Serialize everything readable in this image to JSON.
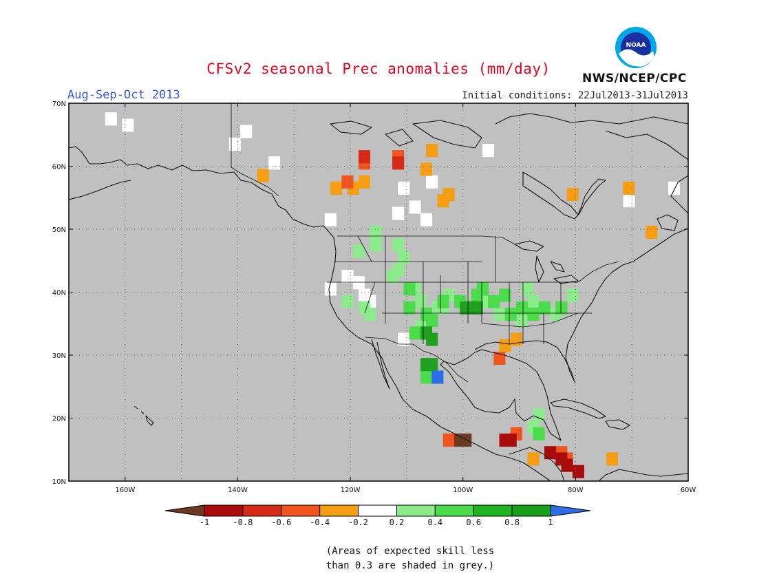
{
  "header": {
    "title": "CFSv2 seasonal Prec anomalies (mm/day)",
    "period": "Aug-Sep-Oct 2013",
    "initial_conditions": "Initial conditions: 22Jul2013-31Jul2013",
    "agency": "NWS/NCEP/CPC",
    "logo_text": "NOAA"
  },
  "map": {
    "extent": {
      "lon_min": -170,
      "lon_max": -60,
      "lat_min": 10,
      "lat_max": 70
    },
    "lat_ticks": [
      "10N",
      "20N",
      "30N",
      "40N",
      "50N",
      "60N",
      "70N"
    ],
    "lon_ticks": [
      "160W",
      "140W",
      "120W",
      "100W",
      "80W",
      "60W"
    ],
    "background_color": "#c0c0c0",
    "gridlines": "dotted",
    "anomaly_cells_lonlat": {
      "white": [
        [
          -163,
          68
        ],
        [
          -160,
          67
        ],
        [
          -141,
          64
        ],
        [
          -139,
          66
        ],
        [
          -134,
          61
        ],
        [
          -124,
          52
        ],
        [
          -124,
          41
        ],
        [
          -121,
          43
        ],
        [
          -119,
          42
        ],
        [
          -118,
          40
        ],
        [
          -117,
          39
        ],
        [
          -111,
          33
        ],
        [
          -107,
          52
        ],
        [
          -109,
          54
        ],
        [
          -111,
          57
        ],
        [
          -106,
          58
        ],
        [
          -96,
          63
        ],
        [
          -71,
          55
        ],
        [
          -63,
          57
        ],
        [
          -112,
          53
        ]
      ],
      "lightgreen": [
        [
          -121,
          39
        ],
        [
          -118,
          38
        ],
        [
          -113,
          43
        ],
        [
          -112,
          44
        ],
        [
          -109,
          41
        ],
        [
          -108,
          39
        ],
        [
          -105,
          38
        ],
        [
          -103,
          40
        ],
        [
          -94,
          37
        ],
        [
          -90,
          36
        ],
        [
          -88,
          39
        ],
        [
          -84,
          37
        ],
        [
          -81,
          40
        ],
        [
          -111,
          46
        ],
        [
          -112,
          48
        ],
        [
          -119,
          47
        ],
        [
          -117,
          37
        ],
        [
          -116,
          50
        ],
        [
          -108,
          35
        ],
        [
          -97,
          39
        ],
        [
          -89,
          41
        ],
        [
          -88,
          19
        ],
        [
          -87,
          21
        ],
        [
          -116,
          48
        ],
        [
          -104,
          38
        ]
      ],
      "green": [
        [
          -110,
          38
        ],
        [
          -107,
          37
        ],
        [
          -104,
          39
        ],
        [
          -101,
          39
        ],
        [
          -98,
          40
        ],
        [
          -95,
          39
        ],
        [
          -92,
          37
        ],
        [
          -90,
          38
        ],
        [
          -86,
          38
        ],
        [
          -83,
          38
        ],
        [
          -110,
          41
        ],
        [
          -97,
          41
        ],
        [
          -93,
          40
        ],
        [
          -88,
          37
        ],
        [
          -107,
          27
        ],
        [
          -106,
          36
        ],
        [
          -109,
          34
        ],
        [
          -87,
          18
        ]
      ],
      "darkgreen": [
        [
          -107,
          34
        ],
        [
          -106,
          33
        ],
        [
          -100,
          38
        ],
        [
          -98,
          38
        ],
        [
          -106,
          29
        ],
        [
          -107,
          29
        ]
      ],
      "orange": [
        [
          -120,
          57
        ],
        [
          -123,
          57
        ],
        [
          -118,
          58
        ],
        [
          -112,
          61
        ],
        [
          -107,
          60
        ],
        [
          -104,
          55
        ],
        [
          -136,
          59
        ],
        [
          -93,
          32
        ],
        [
          -91,
          33
        ],
        [
          -88,
          14
        ],
        [
          -74,
          14
        ],
        [
          -67,
          50
        ],
        [
          -71,
          57
        ],
        [
          -81,
          56
        ],
        [
          -103,
          56
        ],
        [
          -106,
          63
        ]
      ],
      "orangered": [
        [
          -118,
          61
        ],
        [
          -112,
          62
        ],
        [
          -94,
          30
        ],
        [
          -91,
          18
        ],
        [
          -83,
          15
        ],
        [
          -82,
          14
        ],
        [
          -103,
          17
        ],
        [
          -121,
          58
        ]
      ],
      "red": [
        [
          -118,
          62
        ],
        [
          -112,
          61
        ]
      ],
      "darkred": [
        [
          -85,
          15
        ],
        [
          -83,
          14
        ],
        [
          -82,
          13
        ],
        [
          -80,
          12
        ],
        [
          -92,
          17
        ],
        [
          -93,
          17
        ]
      ],
      "brown": [
        [
          -101,
          17
        ],
        [
          -100,
          17
        ]
      ],
      "blue": [
        [
          -105,
          27
        ]
      ]
    }
  },
  "legend": {
    "labels": [
      "-1",
      "-0.8",
      "-0.6",
      "-0.4",
      "-0.2",
      "0.2",
      "0.4",
      "0.6",
      "0.8",
      "1"
    ],
    "colors": [
      "#6b3a22",
      "#a80c0c",
      "#d42a16",
      "#f0551e",
      "#f59e14",
      "#ffffff",
      "#8cec8c",
      "#4adc4a",
      "#20b420",
      "#18a018",
      "#2b6ee8"
    ]
  },
  "note": {
    "line1": "(Areas of expected skill less",
    "line2": "than 0.3 are shaded in grey.)"
  }
}
